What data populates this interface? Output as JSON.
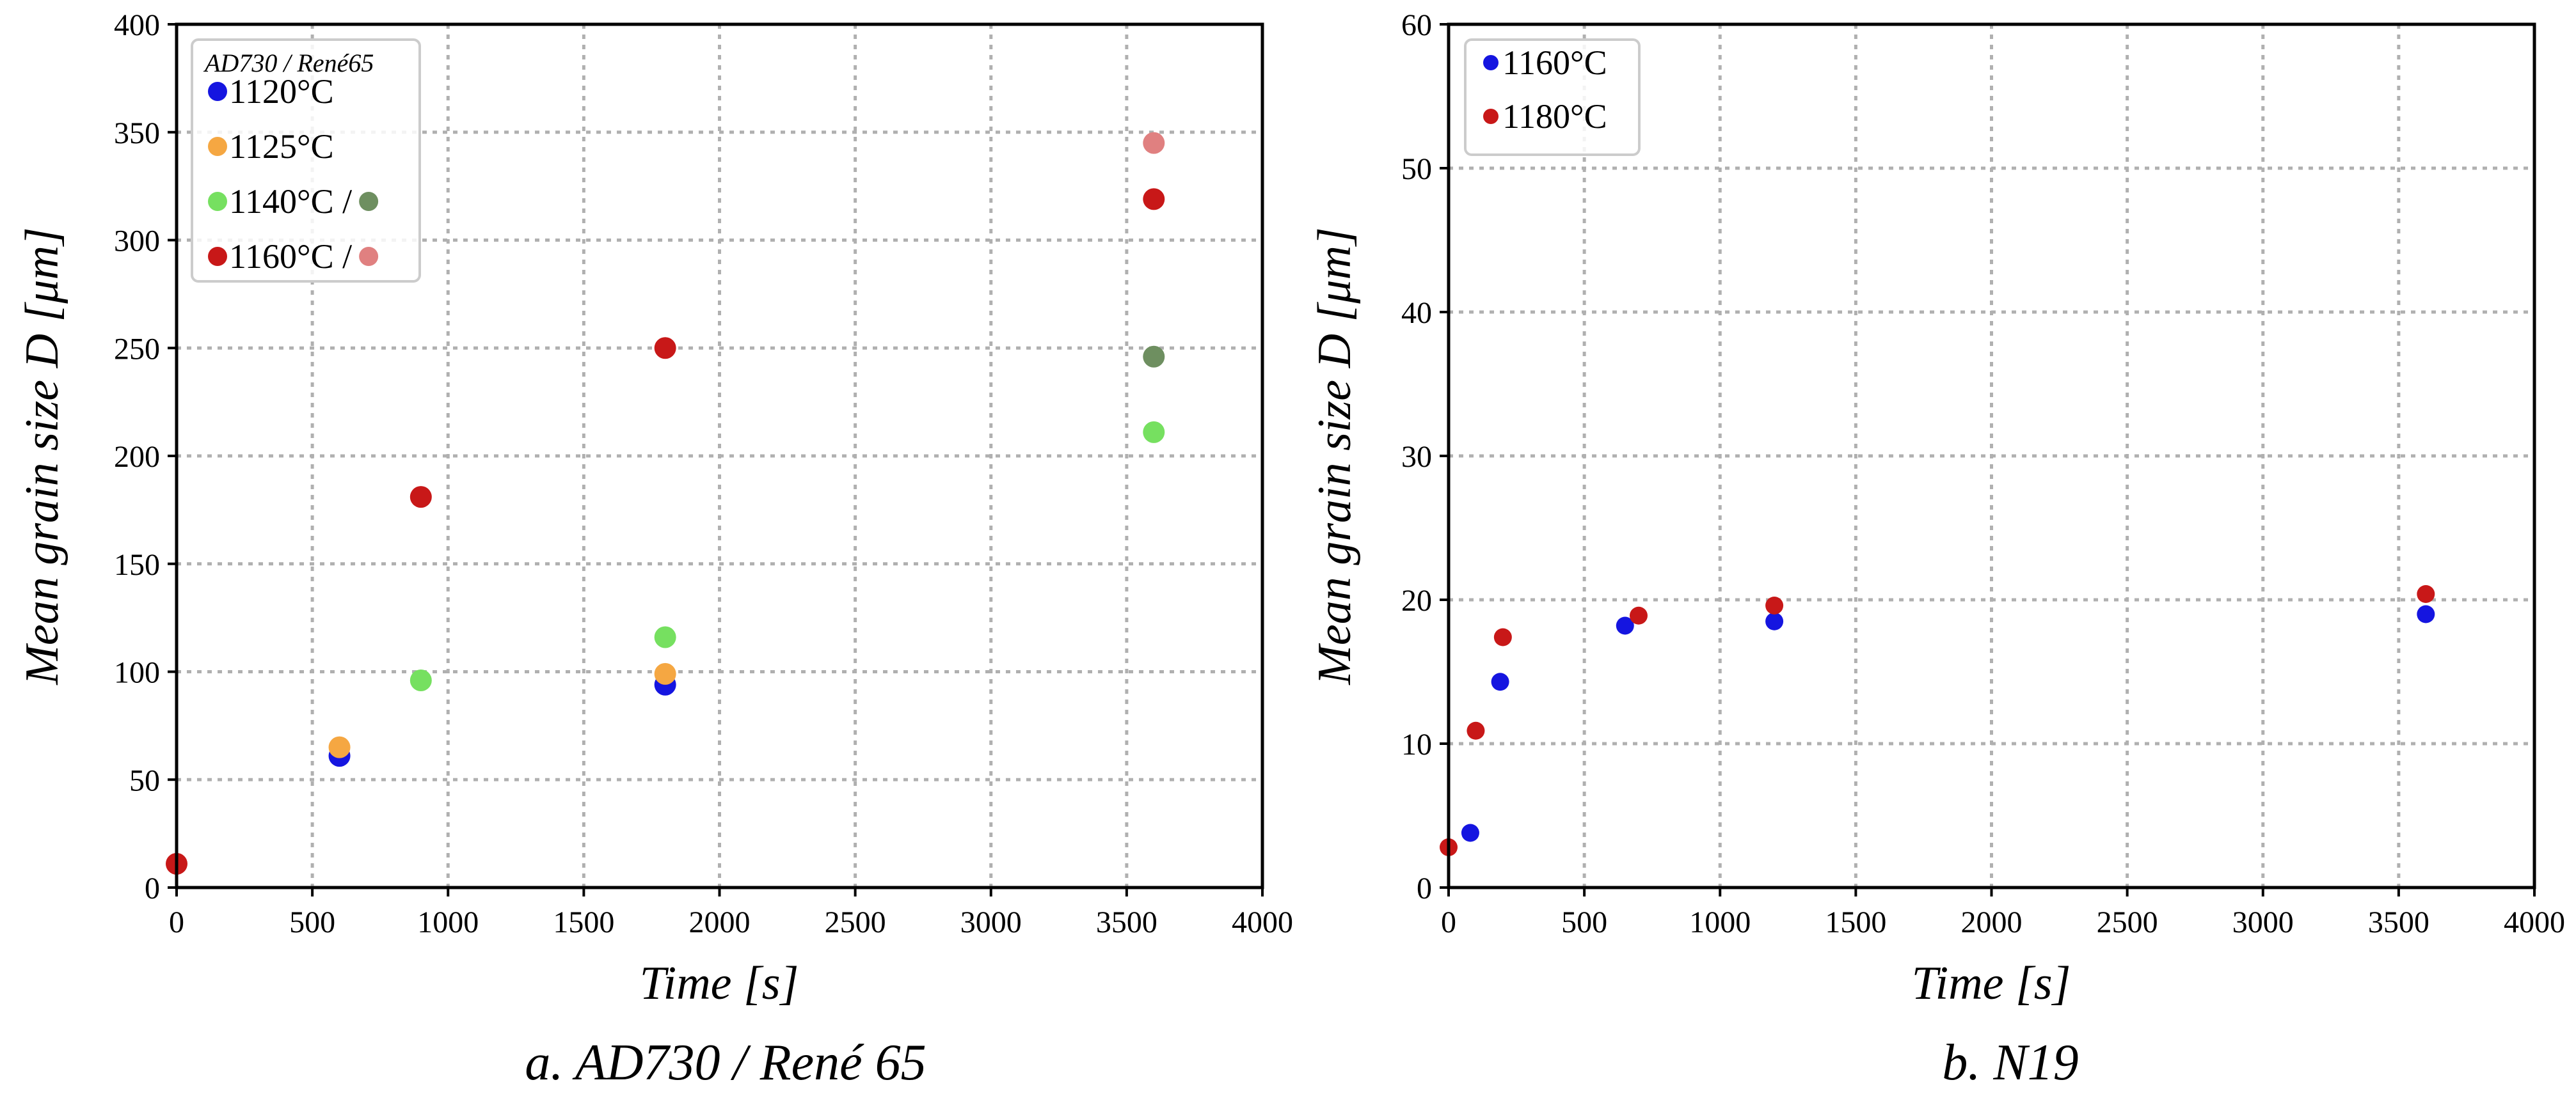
{
  "chart_data": [
    {
      "type": "scatter",
      "caption": "a. AD730 / René 65",
      "xlabel": "Time [s]",
      "ylabel": "Mean grain size D [μm]",
      "xlim": [
        0,
        4000
      ],
      "ylim": [
        0,
        400
      ],
      "xticks": [
        "0",
        "500",
        "1000",
        "1500",
        "2000",
        "2500",
        "3000",
        "3500",
        "4000"
      ],
      "yticks": [
        "0",
        "50",
        "100",
        "150",
        "200",
        "250",
        "300",
        "350",
        "400"
      ],
      "grid": true,
      "legend_position": "top-left",
      "legend_title": "AD730 / René65",
      "series": [
        {
          "name": "1120°C",
          "color": "#1515e0",
          "x": [
            600,
            1800
          ],
          "y": [
            61,
            94
          ]
        },
        {
          "name": "1125°C",
          "color": "#f5a742",
          "x": [
            600,
            1800
          ],
          "y": [
            65,
            99
          ]
        },
        {
          "name": "1140°C",
          "color": "#76e060",
          "x": [
            900,
            1800,
            3600
          ],
          "y": [
            96,
            116,
            211
          ]
        },
        {
          "name": "1160°C",
          "color": "#c81818",
          "x": [
            0,
            900,
            1800,
            3600
          ],
          "y": [
            11,
            181,
            250,
            319
          ]
        },
        {
          "name": "René65 1140°C",
          "color": "#6e8f60",
          "x": [
            3600
          ],
          "y": [
            246
          ]
        },
        {
          "name": "René65 1160°C",
          "color": "#e08080",
          "x": [
            3600
          ],
          "y": [
            345
          ]
        }
      ],
      "legend_entries": [
        {
          "label": "1120°C",
          "colors": [
            "#1515e0"
          ]
        },
        {
          "label": "1125°C",
          "colors": [
            "#f5a742"
          ]
        },
        {
          "label": "1140°C /",
          "colors": [
            "#76e060",
            "#6e8f60"
          ]
        },
        {
          "label": "1160°C /",
          "colors": [
            "#c81818",
            "#e08080"
          ]
        }
      ]
    },
    {
      "type": "scatter",
      "caption": "b. N19",
      "xlabel": "Time [s]",
      "ylabel": "Mean grain size D [μm]",
      "xlim": [
        0,
        4000
      ],
      "ylim": [
        0,
        60
      ],
      "xticks": [
        "0",
        "500",
        "1000",
        "1500",
        "2000",
        "2500",
        "3000",
        "3500",
        "4000"
      ],
      "yticks": [
        "0",
        "10",
        "20",
        "30",
        "40",
        "50",
        "60"
      ],
      "grid": true,
      "legend_position": "top-left",
      "series": [
        {
          "name": "1160°C",
          "color": "#1515e0",
          "x": [
            80,
            190,
            650,
            1200,
            3600
          ],
          "y": [
            3.8,
            14.3,
            18.2,
            18.5,
            19.0
          ]
        },
        {
          "name": "1180°C",
          "color": "#c81818",
          "x": [
            0,
            100,
            200,
            700,
            1200,
            3600
          ],
          "y": [
            2.8,
            10.9,
            17.4,
            18.9,
            19.6,
            20.4
          ]
        }
      ],
      "legend_entries": [
        {
          "label": "1160°C",
          "colors": [
            "#1515e0"
          ]
        },
        {
          "label": "1180°C",
          "colors": [
            "#c81818"
          ]
        }
      ]
    }
  ]
}
